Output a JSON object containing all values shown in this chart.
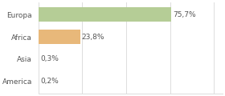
{
  "categories": [
    "Europa",
    "Africa",
    "Asia",
    "America"
  ],
  "values": [
    75.7,
    23.8,
    0.3,
    0.2
  ],
  "labels": [
    "75,7%",
    "23,8%",
    "0,3%",
    "0,2%"
  ],
  "bar_colors": [
    "#b5cd96",
    "#e8b87a",
    "#b5cd96",
    "#b5cd96"
  ],
  "background_color": "#ffffff",
  "xlim": [
    0,
    105
  ],
  "bar_height": 0.65,
  "label_fontsize": 6.5,
  "tick_fontsize": 6.5,
  "grid_color": "#dddddd",
  "grid_positions": [
    0,
    25,
    50,
    75,
    100
  ]
}
